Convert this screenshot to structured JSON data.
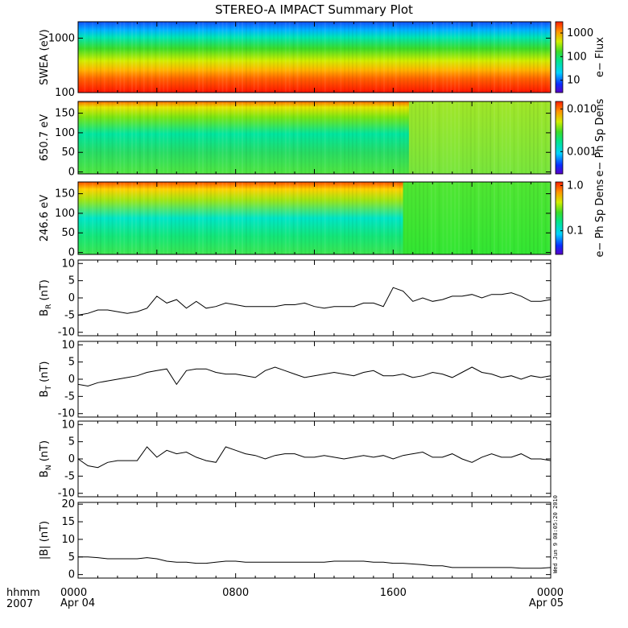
{
  "title": "STEREO-A IMPACT Summary Plot",
  "stamp": "Wed Jun  9 08:05:20 2010",
  "x_axis": {
    "corner_label_top": "hhmm",
    "corner_label_bottom": "2007",
    "ticks": [
      {
        "hour": 0,
        "label": "0000",
        "sub": "Apr 04"
      },
      {
        "hour": 8,
        "label": "0800",
        "sub": ""
      },
      {
        "hour": 16,
        "label": "1600",
        "sub": ""
      },
      {
        "hour": 24,
        "label": "0000",
        "sub": "Apr 05"
      }
    ]
  },
  "chart_data": [
    {
      "type": "heatmap",
      "ylabel": "SWEA (eV)",
      "yscale": "log",
      "ylim": [
        100,
        2000
      ],
      "yticks": [
        {
          "v": 100,
          "t": "100"
        },
        {
          "v": 1000,
          "t": "1000"
        }
      ],
      "colorbar": {
        "label": "e− Flux",
        "scale": "log",
        "range": [
          3,
          3000
        ],
        "ticks": [
          {
            "v": 10,
            "t": "10"
          },
          {
            "v": 100,
            "t": "100"
          },
          {
            "v": 1000,
            "t": "1000"
          }
        ]
      }
    },
    {
      "type": "heatmap",
      "ylabel": "650.7 eV",
      "ylim": [
        -5,
        180
      ],
      "yticks": [
        {
          "v": 0,
          "t": "0"
        },
        {
          "v": 50,
          "t": "50"
        },
        {
          "v": 100,
          "t": "100"
        },
        {
          "v": 150,
          "t": "150"
        }
      ],
      "colorbar": {
        "label": "e− Ph Sp Dens",
        "scale": "log",
        "range": [
          0.0003,
          0.015
        ],
        "ticks": [
          {
            "v": 0.001,
            "t": "0.001"
          },
          {
            "v": 0.01,
            "t": "0.010"
          }
        ]
      }
    },
    {
      "type": "heatmap",
      "ylabel": "246.6 eV",
      "ylim": [
        -5,
        180
      ],
      "yticks": [
        {
          "v": 0,
          "t": "0"
        },
        {
          "v": 50,
          "t": "50"
        },
        {
          "v": 100,
          "t": "100"
        },
        {
          "v": 150,
          "t": "150"
        }
      ],
      "colorbar": {
        "label": "e− Ph Sp Dens",
        "scale": "log",
        "range": [
          0.03,
          1.2
        ],
        "ticks": [
          {
            "v": 0.1,
            "t": "0.1"
          },
          {
            "v": 1.0,
            "t": "1.0"
          }
        ]
      }
    },
    {
      "type": "line",
      "ylabel": "B",
      "ylabel_sub": "R",
      "ylabel_unit": "(nT)",
      "ylim": [
        -11,
        11
      ],
      "yticks": [
        -10,
        -5,
        0,
        5,
        10
      ],
      "x_hours": [
        0,
        0.5,
        1,
        1.5,
        2,
        2.5,
        3,
        3.5,
        4,
        4.5,
        5,
        5.5,
        6,
        6.5,
        7,
        7.5,
        8,
        8.5,
        9,
        9.5,
        10,
        10.5,
        11,
        11.5,
        12,
        12.5,
        13,
        13.5,
        14,
        14.5,
        15,
        15.5,
        16,
        16.5,
        17,
        17.5,
        18,
        18.5,
        19,
        19.5,
        20,
        20.5,
        21,
        21.5,
        22,
        22.5,
        23,
        23.5,
        24
      ],
      "values": [
        -5,
        -4.5,
        -3.5,
        -3.5,
        -4,
        -4.5,
        -4,
        -3,
        0.5,
        -1.5,
        -0.5,
        -3,
        -1,
        -3,
        -2.5,
        -1.5,
        -2,
        -2.5,
        -2.5,
        -2.5,
        -2.5,
        -2,
        -2,
        -1.5,
        -2.5,
        -3,
        -2.5,
        -2.5,
        -2.5,
        -1.5,
        -1.5,
        -2.5,
        3,
        2,
        -1,
        0,
        -1,
        -0.5,
        0.5,
        0.5,
        1,
        0,
        1,
        1,
        1.5,
        0.5,
        -1,
        -1,
        -0.5
      ]
    },
    {
      "type": "line",
      "ylabel": "B",
      "ylabel_sub": "T",
      "ylabel_unit": "(nT)",
      "ylim": [
        -11,
        11
      ],
      "yticks": [
        -10,
        -5,
        0,
        5,
        10
      ],
      "x_hours": [
        0,
        0.5,
        1,
        1.5,
        2,
        2.5,
        3,
        3.5,
        4,
        4.5,
        5,
        5.5,
        6,
        6.5,
        7,
        7.5,
        8,
        8.5,
        9,
        9.5,
        10,
        10.5,
        11,
        11.5,
        12,
        12.5,
        13,
        13.5,
        14,
        14.5,
        15,
        15.5,
        16,
        16.5,
        17,
        17.5,
        18,
        18.5,
        19,
        19.5,
        20,
        20.5,
        21,
        21.5,
        22,
        22.5,
        23,
        23.5,
        24
      ],
      "values": [
        -1.5,
        -2,
        -1,
        -0.5,
        0,
        0.5,
        1,
        2,
        2.5,
        3,
        -1.5,
        2.5,
        3,
        3,
        2,
        1.5,
        1.5,
        1,
        0.5,
        2.5,
        3.5,
        2.5,
        1.5,
        0.5,
        1,
        1.5,
        2,
        1.5,
        1,
        2,
        2.5,
        1,
        1,
        1.5,
        0.5,
        1,
        2,
        1.5,
        0.5,
        2,
        3.5,
        2,
        1.5,
        0.5,
        1,
        0,
        1,
        0.5,
        1
      ]
    },
    {
      "type": "line",
      "ylabel": "B",
      "ylabel_sub": "N",
      "ylabel_unit": "(nT)",
      "ylim": [
        -11,
        11
      ],
      "yticks": [
        -10,
        -5,
        0,
        5,
        10
      ],
      "x_hours": [
        0,
        0.5,
        1,
        1.5,
        2,
        2.5,
        3,
        3.5,
        4,
        4.5,
        5,
        5.5,
        6,
        6.5,
        7,
        7.5,
        8,
        8.5,
        9,
        9.5,
        10,
        10.5,
        11,
        11.5,
        12,
        12.5,
        13,
        13.5,
        14,
        14.5,
        15,
        15.5,
        16,
        16.5,
        17,
        17.5,
        18,
        18.5,
        19,
        19.5,
        20,
        20.5,
        21,
        21.5,
        22,
        22.5,
        23,
        23.5,
        24
      ],
      "values": [
        0,
        -2,
        -2.5,
        -1,
        -0.5,
        -0.5,
        -0.5,
        3.5,
        0.5,
        2.5,
        1.5,
        2,
        0.5,
        -0.5,
        -1,
        3.5,
        2.5,
        1.5,
        1,
        0,
        1,
        1.5,
        1.5,
        0.5,
        0.5,
        1,
        0.5,
        0,
        0.5,
        1,
        0.5,
        1,
        0,
        1,
        1.5,
        2,
        0.5,
        0.5,
        1.5,
        0,
        -1,
        0.5,
        1.5,
        0.5,
        0.5,
        1.5,
        0,
        0,
        -0.5
      ]
    },
    {
      "type": "line",
      "ylabel": "|B| (nT)",
      "ylim": [
        -1,
        20.5
      ],
      "yticks": [
        0,
        5,
        10,
        15,
        20
      ],
      "x_hours": [
        0,
        0.5,
        1,
        1.5,
        2,
        2.5,
        3,
        3.5,
        4,
        4.5,
        5,
        5.5,
        6,
        6.5,
        7,
        7.5,
        8,
        8.5,
        9,
        9.5,
        10,
        10.5,
        11,
        11.5,
        12,
        12.5,
        13,
        13.5,
        14,
        14.5,
        15,
        15.5,
        16,
        16.5,
        17,
        17.5,
        18,
        18.5,
        19,
        19.5,
        20,
        20.5,
        21,
        21.5,
        22,
        22.5,
        23,
        23.5,
        24
      ],
      "values": [
        5,
        5,
        4.8,
        4.5,
        4.5,
        4.5,
        4.5,
        4.8,
        4.5,
        3.8,
        3.5,
        3.5,
        3.2,
        3.2,
        3.5,
        3.8,
        3.8,
        3.5,
        3.5,
        3.5,
        3.5,
        3.5,
        3.5,
        3.5,
        3.5,
        3.5,
        3.8,
        3.8,
        3.8,
        3.8,
        3.5,
        3.5,
        3.2,
        3.2,
        3,
        2.8,
        2.5,
        2.5,
        2,
        2,
        2,
        2,
        2,
        2,
        2,
        1.8,
        1.8,
        1.8,
        2
      ]
    }
  ]
}
